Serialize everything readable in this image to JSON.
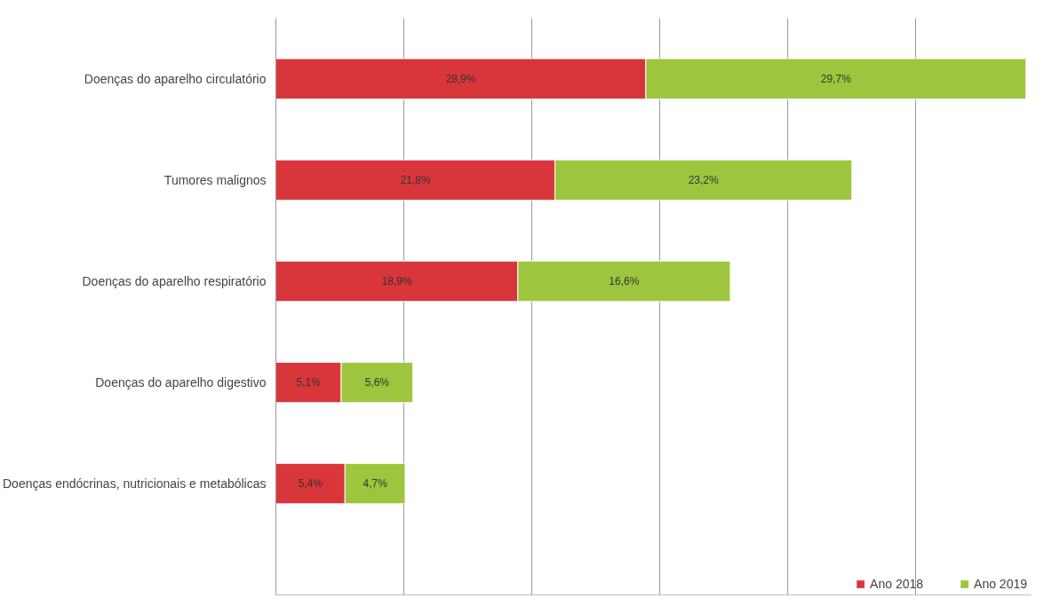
{
  "chart_data": {
    "type": "bar",
    "orientation": "horizontal",
    "stacked": true,
    "categories": [
      "Doenças do aparelho circulatório",
      "Tumores malignos",
      "Doenças do aparelho respiratório",
      "Doenças do aparelho digestivo",
      "Doenças endócrinas, nutricionais e metabólicas"
    ],
    "series": [
      {
        "name": "Ano 2018",
        "color": "#d9363b",
        "values": [
          28.9,
          21.8,
          18.9,
          5.1,
          5.4
        ],
        "value_labels": [
          "28,9%",
          "21,8%",
          "18,9%",
          "5,1%",
          "5,4%"
        ]
      },
      {
        "name": "Ano 2019",
        "color": "#9dc63e",
        "values": [
          29.7,
          23.2,
          16.6,
          5.6,
          4.7
        ],
        "value_labels": [
          "29,7%",
          "23,2%",
          "16,6%",
          "5,6%",
          "4,7%"
        ]
      }
    ],
    "xlim": [
      0,
      59
    ],
    "xticks": [
      {
        "value": 0,
        "label": null
      },
      {
        "value": 10,
        "label": null
      },
      {
        "value": 20,
        "label": null
      },
      {
        "value": 30,
        "label": null
      },
      {
        "value": 40,
        "label": null
      },
      {
        "value": 50,
        "label": null
      }
    ],
    "grid": "x",
    "legend": "bottom",
    "tick_labels": "y"
  }
}
